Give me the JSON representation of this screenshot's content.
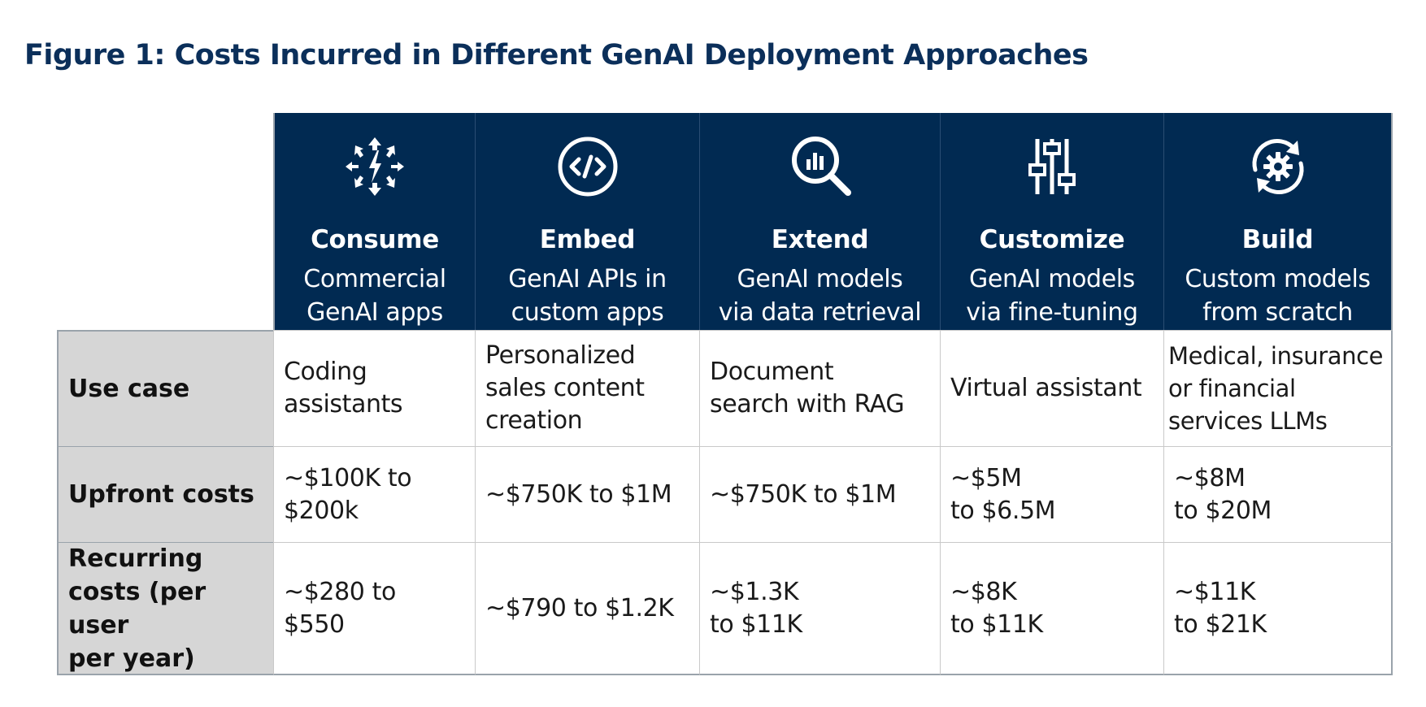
{
  "title": "Figure 1: Costs Incurred in Different GenAI Deployment Approaches",
  "colors": {
    "header_bg": "#012a52",
    "title": "#0b2f5a",
    "row_header_bg": "#d6d6d6"
  },
  "chart_data": {
    "type": "table",
    "title": "Figure 1: Costs Incurred in Different GenAI Deployment Approaches",
    "columns": [
      {
        "icon": "arrows-burst-icon",
        "name": "Consume",
        "desc": "Commercial\nGenAI apps"
      },
      {
        "icon": "code-circle-icon",
        "name": "Embed",
        "desc": "GenAI APIs in\ncustom apps"
      },
      {
        "icon": "magnifier-chart-icon",
        "name": "Extend",
        "desc": "GenAI models\nvia data retrieval"
      },
      {
        "icon": "sliders-icon",
        "name": "Customize",
        "desc": "GenAI models\nvia fine-tuning"
      },
      {
        "icon": "gear-cycle-icon",
        "name": "Build",
        "desc": "Custom models\nfrom scratch"
      }
    ],
    "rows": [
      {
        "label": "Use case",
        "cells": [
          "Coding\nassistants",
          "Personalized\nsales content\ncreation",
          "Document\nsearch with RAG",
          "Virtual assistant",
          "Medical, insurance\nor financial\nservices LLMs"
        ]
      },
      {
        "label": "Upfront costs",
        "cells": [
          "~$100K to\n$200k",
          "~$750K to $1M",
          "~$750K to $1M",
          "~$5M\nto $6.5M",
          "~$8M\nto $20M"
        ]
      },
      {
        "label": "Recurring\ncosts (per user\nper year)",
        "cells": [
          "~$280 to\n$550",
          "~$790 to $1.2K",
          "~$1.3K\nto $11K",
          "~$8K\nto $11K",
          "~$11K\nto $21K"
        ]
      }
    ]
  }
}
